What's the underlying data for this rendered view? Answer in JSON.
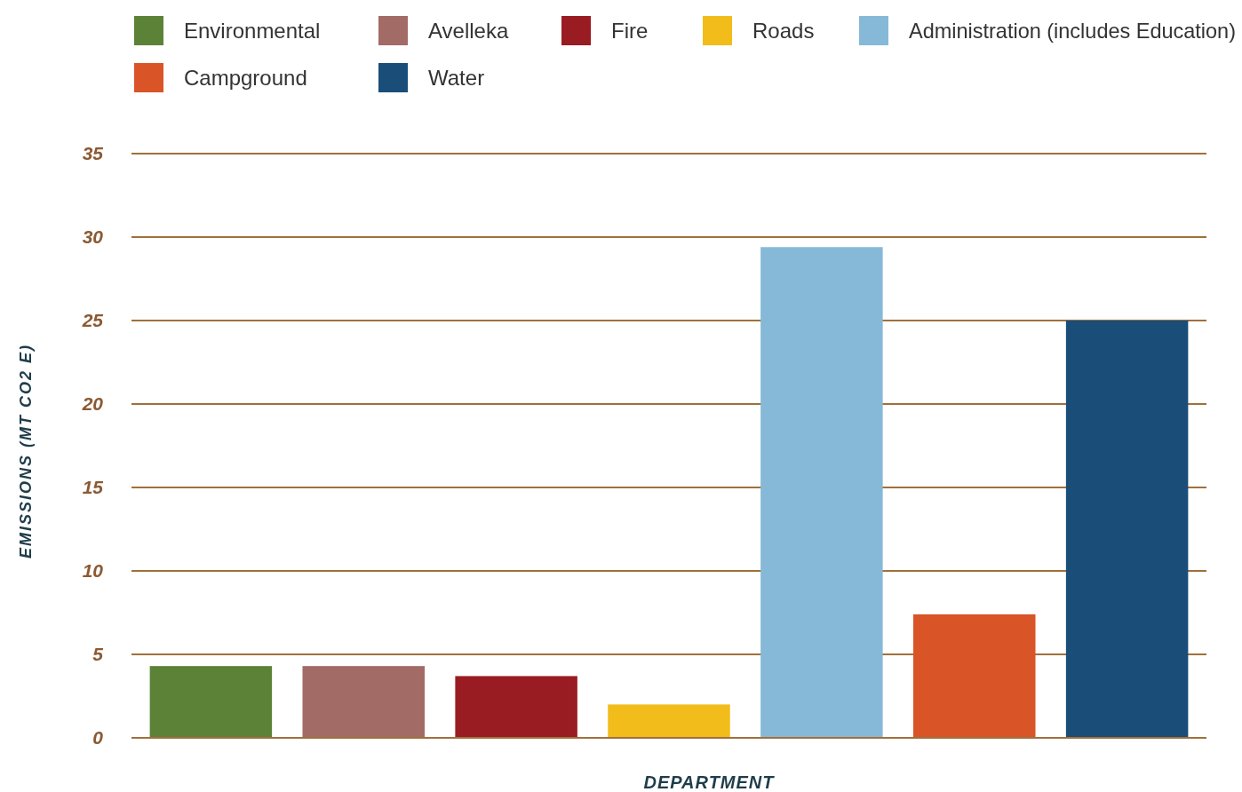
{
  "chart_data": {
    "type": "bar",
    "xlabel": "DEPARTMENT",
    "ylabel": "EMISSIONS (MT CO2 E)",
    "categories": [
      null,
      null,
      null,
      null,
      null,
      null,
      null
    ],
    "series": [
      {
        "name": "Environmental",
        "color": "#5b8237",
        "values": [
          4.3,
          null,
          null,
          null,
          null,
          null,
          null
        ]
      },
      {
        "name": "Avelleka",
        "color": "#a26b66",
        "values": [
          null,
          4.3,
          null,
          null,
          null,
          null,
          null
        ]
      },
      {
        "name": "Fire",
        "color": "#991c22",
        "values": [
          null,
          null,
          3.7,
          null,
          null,
          null,
          null
        ]
      },
      {
        "name": "Roads",
        "color": "#f2bc1a",
        "values": [
          null,
          null,
          null,
          2.0,
          null,
          null,
          null
        ]
      },
      {
        "name": "Administration (includes Education)",
        "color": "#86b9d8",
        "values": [
          null,
          null,
          null,
          null,
          29.4,
          null,
          null
        ]
      },
      {
        "name": "Campground",
        "color": "#d95427",
        "values": [
          null,
          null,
          null,
          null,
          null,
          7.4,
          null
        ]
      },
      {
        "name": "Water",
        "color": "#1a4e79",
        "values": [
          null,
          null,
          null,
          null,
          null,
          null,
          25.0
        ]
      }
    ],
    "ylim": [
      0,
      35
    ],
    "yticks": [
      0,
      5,
      10,
      15,
      20,
      25,
      30,
      35
    ],
    "grid": "y",
    "legend": "top"
  }
}
